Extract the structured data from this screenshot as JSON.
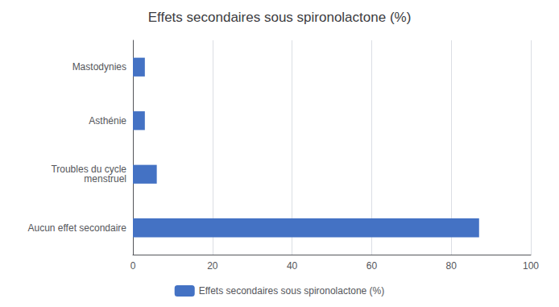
{
  "chart_data": {
    "type": "bar",
    "orientation": "horizontal",
    "title": "Effets secondaires sous spironolactone (%)",
    "categories": [
      "Aucun effet secondaire",
      "Troubles du cycle\nmenstruel",
      "Asthénie",
      "Mastodynies"
    ],
    "series": [
      {
        "name": "Effets secondaires sous spironolactone (%)",
        "color": "#4472C4",
        "values": [
          87,
          6,
          3,
          3
        ]
      }
    ],
    "xlim": [
      0,
      100
    ],
    "xticks": [
      0,
      20,
      40,
      60,
      80,
      100
    ],
    "grid": true,
    "legend": "bottom"
  }
}
